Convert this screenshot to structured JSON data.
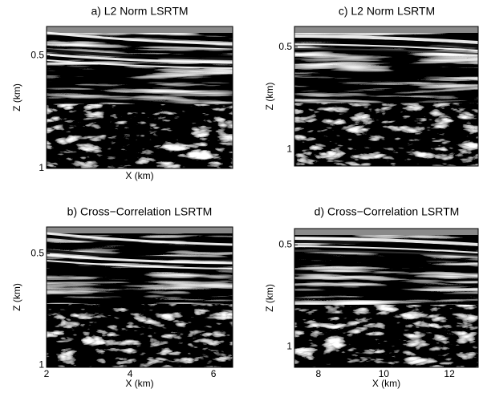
{
  "chart_data": [
    {
      "type": "image",
      "title": "a) L2 Norm LSRTM",
      "xlabel": "X (km)",
      "ylabel": "Z (km)",
      "ylim": [
        0.37,
        1
      ],
      "yticks": [
        0.5,
        1
      ]
    },
    {
      "type": "image",
      "title": "b) Cross−Correlation LSRTM",
      "xlabel": "X (km)",
      "ylabel": "Z (km)",
      "ylim": [
        0.38,
        1.01
      ],
      "yticks": [
        0.5,
        1
      ],
      "xlim": [
        2,
        6.46
      ],
      "xticks": [
        2,
        4,
        6
      ]
    },
    {
      "type": "image",
      "title": "c) L2 Norm LSRTM",
      "ylabel": "Z (km)",
      "ylim": [
        0.4,
        1.08
      ],
      "yticks": [
        0.5,
        1
      ]
    },
    {
      "type": "image",
      "title": "d) Cross−Correlation LSRTM",
      "xlabel": "X (km)",
      "ylabel": "Z (km)",
      "ylim": [
        0.42,
        1.1
      ],
      "yticks": [
        0.5,
        1
      ],
      "xlim": [
        7.27,
        12.88
      ],
      "xticks": [
        8,
        10,
        12
      ]
    }
  ]
}
